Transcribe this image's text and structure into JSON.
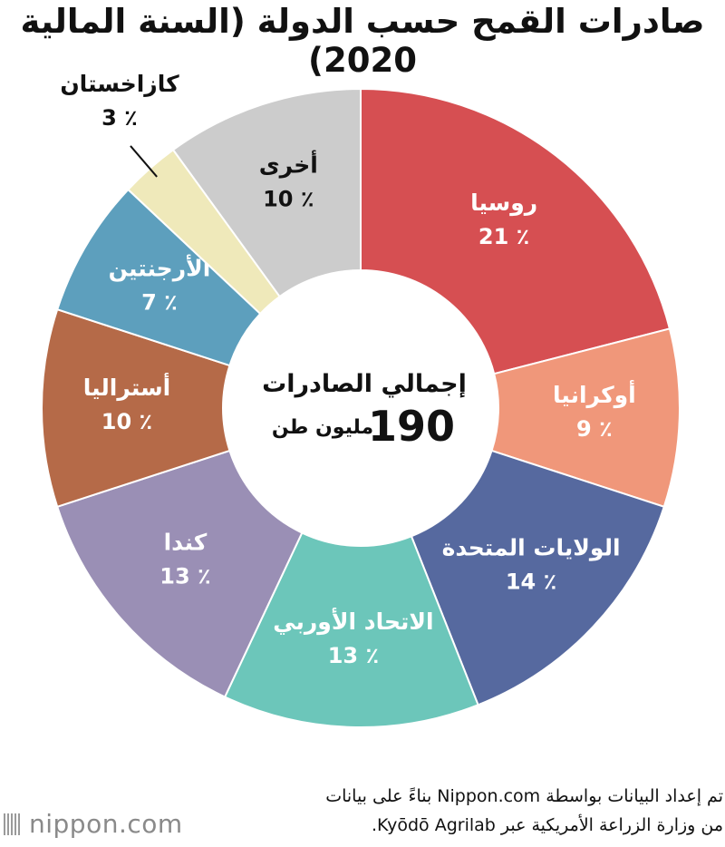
{
  "chart_data": {
    "type": "pie",
    "title": "صادرات القمح حسب الدولة (السنة المالية 2020)",
    "unit_suffix": "٪",
    "slices": [
      {
        "label": "روسيا",
        "value": 21,
        "color": "#d64f52",
        "text_color": "#ffffff"
      },
      {
        "label": "أوكرانيا",
        "value": 9,
        "color": "#f0977a",
        "text_color": "#ffffff"
      },
      {
        "label": "الولايات المتحدة",
        "value": 14,
        "color": "#56699f",
        "text_color": "#ffffff"
      },
      {
        "label": "الاتحاد الأوربي",
        "value": 13,
        "color": "#6cc6ba",
        "text_color": "#ffffff"
      },
      {
        "label": "كندا",
        "value": 13,
        "color": "#9a8fb5",
        "text_color": "#ffffff"
      },
      {
        "label": "أستراليا",
        "value": 10,
        "color": "#b56a48",
        "text_color": "#ffffff"
      },
      {
        "label": "الأرجنتين",
        "value": 7,
        "color": "#5d9fbd",
        "text_color": "#ffffff"
      },
      {
        "label": "كازاخستان",
        "value": 3,
        "color": "#efe9ba",
        "text_color": "#111111"
      },
      {
        "label": "أخرى",
        "value": 10,
        "color": "#cccccc",
        "text_color": "#111111"
      }
    ],
    "center": {
      "line1": "إجمالي الصادرات",
      "value": "190",
      "unit": "مليون طن"
    }
  },
  "source": {
    "line1": "تم إعداد البيانات بواسطة Nippon.com بناءً على بيانات",
    "line2": "من وزارة الزراعة الأمريكية عبر Kyōdō Agrilab."
  },
  "logo": {
    "text": "nippon.com"
  }
}
